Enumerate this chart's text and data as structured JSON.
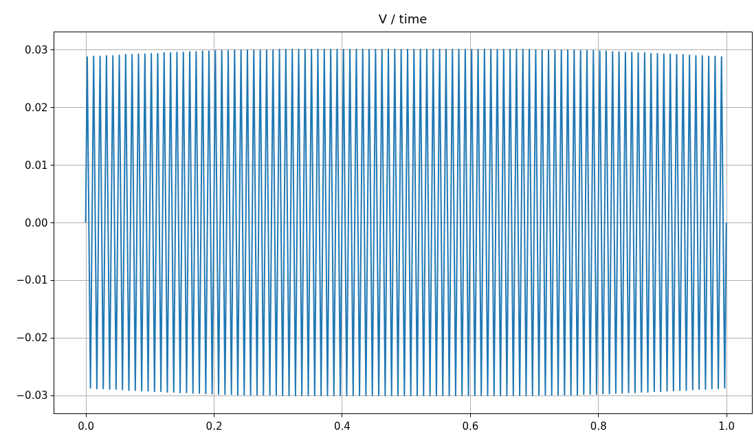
{
  "chart_data": {
    "type": "line",
    "title": "V / time",
    "grid": true,
    "x": [
      0,
      0.0025,
      0.0075,
      0.0125,
      0.0175,
      0.0225,
      0.0275,
      0.0325,
      0.0375,
      0.0425,
      0.0475,
      0.0525,
      0.0575,
      0.0625,
      0.0675,
      0.0725,
      0.0775,
      0.0825,
      0.0875,
      0.0925,
      0.0975,
      0.1025,
      0.1075,
      0.1125,
      0.1175,
      0.1225,
      0.1275,
      0.1325,
      0.1375,
      0.1425,
      0.1475,
      0.1525,
      0.1575,
      0.1625,
      0.1675,
      0.1725,
      0.1775,
      0.1825,
      0.1875,
      0.1925,
      0.1975,
      0.2025,
      0.2075,
      0.2125,
      0.2175,
      0.2225,
      0.2275,
      0.2325,
      0.2375,
      0.2425,
      0.2475,
      0.2525,
      0.2575,
      0.2625,
      0.2675,
      0.2725,
      0.2775,
      0.2825,
      0.2875,
      0.2925,
      0.2975,
      0.3025,
      0.3075,
      0.3125,
      0.3175,
      0.3225,
      0.3275,
      0.3325,
      0.3375,
      0.3425,
      0.3475,
      0.3525,
      0.3575,
      0.3625,
      0.3675,
      0.3725,
      0.3775,
      0.3825,
      0.3875,
      0.3925,
      0.3975,
      0.4025,
      0.4075,
      0.4125,
      0.4175,
      0.4225,
      0.4275,
      0.4325,
      0.4375,
      0.4425,
      0.4475,
      0.4525,
      0.4575,
      0.4625,
      0.4675,
      0.4725,
      0.4775,
      0.4825,
      0.4875,
      0.4925,
      0.4975,
      0.5025,
      0.5075,
      0.5125,
      0.5175,
      0.5225,
      0.5275,
      0.5325,
      0.5375,
      0.5425,
      0.5475,
      0.5525,
      0.5575,
      0.5625,
      0.5675,
      0.5725,
      0.5775,
      0.5825,
      0.5875,
      0.5925,
      0.5975,
      0.6025,
      0.6075,
      0.6125,
      0.6175,
      0.6225,
      0.6275,
      0.6325,
      0.6375,
      0.6425,
      0.6475,
      0.6525,
      0.6575,
      0.6625,
      0.6675,
      0.6725,
      0.6775,
      0.6825,
      0.6875,
      0.6925,
      0.6975,
      0.7025,
      0.7075,
      0.7125,
      0.7175,
      0.7225,
      0.7275,
      0.7325,
      0.7375,
      0.7425,
      0.7475,
      0.7525,
      0.7575,
      0.7625,
      0.7675,
      0.7725,
      0.7775,
      0.7825,
      0.7875,
      0.7925,
      0.7975,
      0.8025,
      0.8075,
      0.8125,
      0.8175,
      0.8225,
      0.8275,
      0.8325,
      0.8375,
      0.8425,
      0.8475,
      0.8525,
      0.8575,
      0.8625,
      0.8675,
      0.8725,
      0.8775,
      0.8825,
      0.8875,
      0.8925,
      0.8975,
      0.9025,
      0.9075,
      0.9125,
      0.9175,
      0.9225,
      0.9275,
      0.9325,
      0.9375,
      0.9425,
      0.9475,
      0.9525,
      0.9575,
      0.9625,
      0.9675,
      0.9725,
      0.9775,
      0.9825,
      0.9875,
      0.9925,
      0.9975,
      1
    ],
    "series": [
      {
        "color": "#1f77b4",
        "values": [
          0,
          0.0287,
          -0.0287,
          0.0288,
          -0.0288,
          0.0288,
          -0.0288,
          0.0289,
          -0.0289,
          0.0289,
          -0.0289,
          0.029,
          -0.029,
          0.0291,
          -0.0291,
          0.0291,
          -0.0291,
          0.0292,
          -0.0292,
          0.0292,
          -0.0292,
          0.0293,
          -0.0293,
          0.0293,
          -0.0293,
          0.0294,
          -0.0294,
          0.0294,
          -0.0294,
          0.0295,
          -0.0295,
          0.0295,
          -0.0295,
          0.0296,
          -0.0296,
          0.0296,
          -0.0296,
          0.0297,
          -0.0297,
          0.0297,
          -0.0297,
          0.0298,
          -0.0298,
          0.0298,
          -0.0298,
          0.0298,
          -0.0298,
          0.0299,
          -0.0299,
          0.0299,
          -0.0299,
          0.0299,
          -0.0299,
          0.0299,
          -0.0299,
          0.0299,
          -0.0299,
          0.0299,
          -0.0299,
          0.0299,
          -0.0299,
          0.03,
          -0.03,
          0.03,
          -0.03,
          0.03,
          -0.03,
          0.03,
          -0.03,
          0.03,
          -0.03,
          0.03,
          -0.03,
          0.03,
          -0.03,
          0.03,
          -0.03,
          0.03,
          -0.03,
          0.03,
          -0.03,
          0.03,
          -0.03,
          0.03,
          -0.03,
          0.03,
          -0.03,
          0.03,
          -0.03,
          0.03,
          -0.03,
          0.03,
          -0.03,
          0.03,
          -0.03,
          0.03,
          -0.03,
          0.03,
          -0.03,
          0.03,
          -0.03,
          0.03,
          -0.03,
          0.03,
          -0.03,
          0.03,
          -0.03,
          0.03,
          -0.03,
          0.03,
          -0.03,
          0.03,
          -0.03,
          0.03,
          -0.03,
          0.03,
          -0.03,
          0.03,
          -0.03,
          0.03,
          -0.03,
          0.03,
          -0.03,
          0.03,
          -0.03,
          0.03,
          -0.03,
          0.03,
          -0.03,
          0.03,
          -0.03,
          0.03,
          -0.03,
          0.03,
          -0.03,
          0.03,
          -0.03,
          0.03,
          -0.03,
          0.03,
          -0.03,
          0.0299,
          -0.0299,
          0.0299,
          -0.0299,
          0.0299,
          -0.0299,
          0.0299,
          -0.0299,
          0.0299,
          -0.0299,
          0.0299,
          -0.0299,
          0.0299,
          -0.0299,
          0.0298,
          -0.0298,
          0.0298,
          -0.0298,
          0.0298,
          -0.0298,
          0.0297,
          -0.0297,
          0.0297,
          -0.0297,
          0.0296,
          -0.0296,
          0.0296,
          -0.0296,
          0.0295,
          -0.0295,
          0.0295,
          -0.0295,
          0.0294,
          -0.0294,
          0.0294,
          -0.0294,
          0.0293,
          -0.0293,
          0.0293,
          -0.0293,
          0.0292,
          -0.0292,
          0.0292,
          -0.0292,
          0.0291,
          -0.0291,
          0.0291,
          -0.0291,
          0.029,
          -0.029,
          0.0289,
          -0.0289,
          0.0289,
          -0.0289,
          0.0288,
          -0.0288,
          0.0288,
          -0.0288,
          0.0287,
          -0.0287,
          0
        ]
      }
    ],
    "xlim": [
      -0.05,
      1.04
    ],
    "xticks": [
      {
        "value": 0,
        "label": "0.0"
      },
      0.2,
      0.4,
      0.6,
      0.8,
      {
        "value": 1,
        "label": "1.0"
      }
    ],
    "ylim": [
      -0.0331,
      0.0331
    ],
    "yticks": [
      {
        "value": -0.03,
        "label": "−0.03"
      },
      {
        "value": -0.02,
        "label": "−0.02"
      },
      {
        "value": -0.01,
        "label": "−0.01"
      },
      {
        "value": 0,
        "label": "0.00"
      },
      0.01,
      0.02,
      0.03
    ]
  }
}
